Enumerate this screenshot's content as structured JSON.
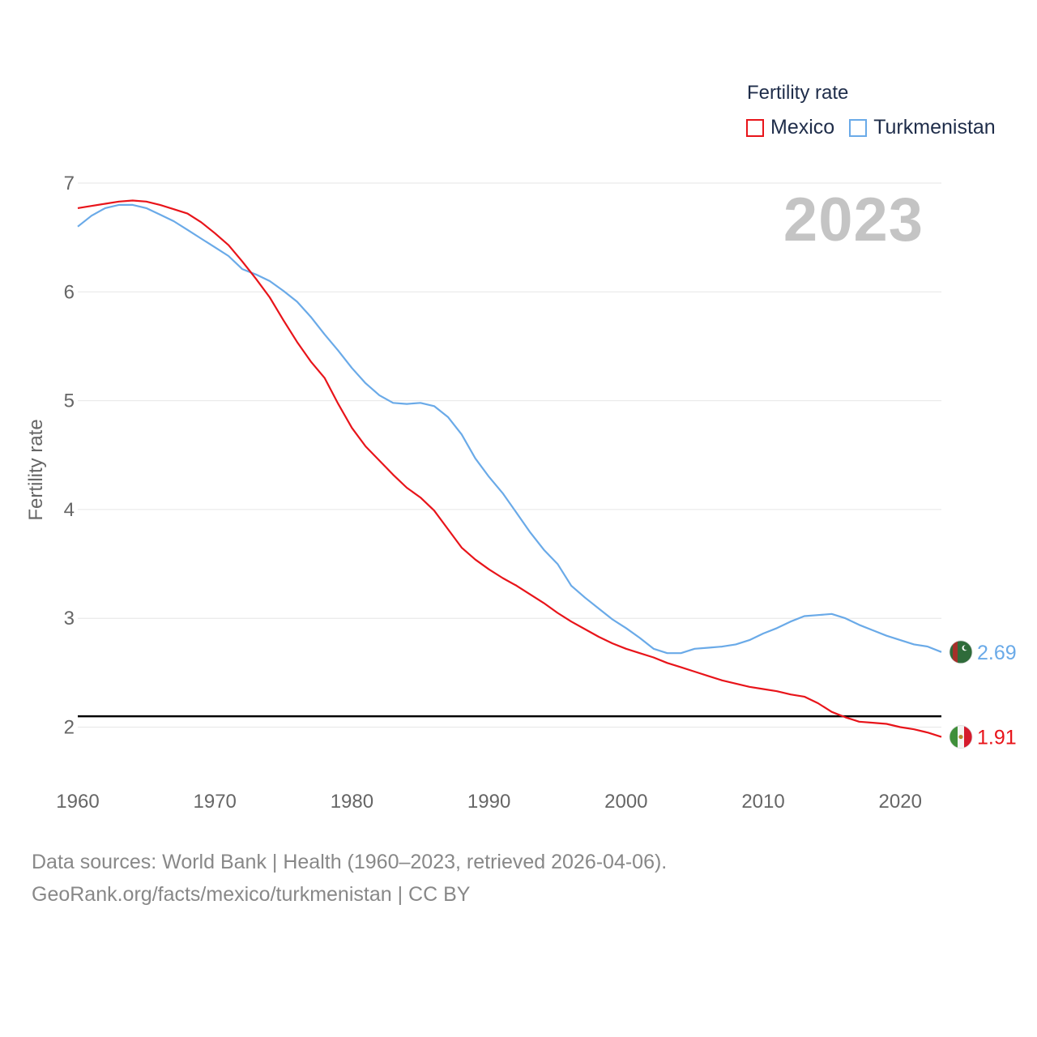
{
  "legend": {
    "title": "Fertility rate",
    "items": [
      {
        "name": "Mexico",
        "color": "#e8141a"
      },
      {
        "name": "Turkmenistan",
        "color": "#6aaae8"
      }
    ]
  },
  "current_year": "2023",
  "footer": {
    "line1": "Data sources: World Bank | Health (1960–2023, retrieved 2026-04-06).",
    "line2": "GeoRank.org/facts/mexico/turkmenistan | CC BY"
  },
  "chart_data": {
    "type": "line",
    "title": "",
    "xlabel": "",
    "ylabel": "Fertility rate",
    "xlim": [
      1960,
      2023
    ],
    "ylim": [
      1.5,
      7.0
    ],
    "xticks": [
      1960,
      1970,
      1980,
      1990,
      2000,
      2010,
      2020
    ],
    "yticks": [
      2,
      3,
      4,
      5,
      6,
      7
    ],
    "reference_line": {
      "y": 2.1,
      "color": "#000000"
    },
    "x": [
      1960,
      1961,
      1962,
      1963,
      1964,
      1965,
      1966,
      1967,
      1968,
      1969,
      1970,
      1971,
      1972,
      1973,
      1974,
      1975,
      1976,
      1977,
      1978,
      1979,
      1980,
      1981,
      1982,
      1983,
      1984,
      1985,
      1986,
      1987,
      1988,
      1989,
      1990,
      1991,
      1992,
      1993,
      1994,
      1995,
      1996,
      1997,
      1998,
      1999,
      2000,
      2001,
      2002,
      2003,
      2004,
      2005,
      2006,
      2007,
      2008,
      2009,
      2010,
      2011,
      2012,
      2013,
      2014,
      2015,
      2016,
      2017,
      2018,
      2019,
      2020,
      2021,
      2022,
      2023
    ],
    "series": [
      {
        "name": "Mexico",
        "color": "#e8141a",
        "end_label": "1.91",
        "values": [
          6.77,
          6.79,
          6.81,
          6.83,
          6.84,
          6.83,
          6.8,
          6.76,
          6.72,
          6.64,
          6.54,
          6.43,
          6.28,
          6.12,
          5.95,
          5.74,
          5.54,
          5.36,
          5.21,
          4.97,
          4.75,
          4.58,
          4.45,
          4.32,
          4.2,
          4.11,
          3.99,
          3.82,
          3.65,
          3.54,
          3.45,
          3.37,
          3.3,
          3.22,
          3.14,
          3.05,
          2.97,
          2.9,
          2.83,
          2.77,
          2.72,
          2.68,
          2.64,
          2.59,
          2.55,
          2.51,
          2.47,
          2.43,
          2.4,
          2.37,
          2.35,
          2.33,
          2.3,
          2.28,
          2.22,
          2.14,
          2.09,
          2.05,
          2.04,
          2.03,
          2.0,
          1.98,
          1.95,
          1.91
        ]
      },
      {
        "name": "Turkmenistan",
        "color": "#6aaae8",
        "end_label": "2.69",
        "values": [
          6.6,
          6.7,
          6.77,
          6.8,
          6.8,
          6.77,
          6.71,
          6.65,
          6.57,
          6.49,
          6.41,
          6.33,
          6.21,
          6.16,
          6.1,
          6.01,
          5.91,
          5.77,
          5.61,
          5.46,
          5.3,
          5.16,
          5.05,
          4.98,
          4.97,
          4.98,
          4.95,
          4.85,
          4.69,
          4.47,
          4.3,
          4.15,
          3.97,
          3.79,
          3.63,
          3.5,
          3.3,
          3.19,
          3.09,
          2.99,
          2.91,
          2.82,
          2.72,
          2.68,
          2.68,
          2.72,
          2.73,
          2.74,
          2.76,
          2.8,
          2.86,
          2.91,
          2.97,
          3.02,
          3.03,
          3.04,
          3.0,
          2.94,
          2.89,
          2.84,
          2.8,
          2.76,
          2.74,
          2.69
        ]
      }
    ]
  }
}
